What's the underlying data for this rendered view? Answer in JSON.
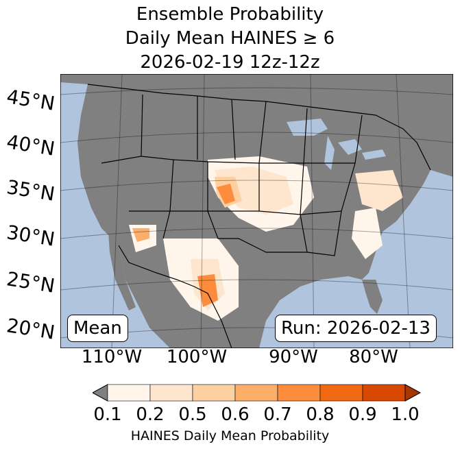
{
  "title": {
    "line1": "Ensemble Probability",
    "line2": "Daily Mean HAINES ≥ 6",
    "line3": "2026-02-19 12z-12z"
  },
  "map": {
    "lat_labels": [
      "45°N",
      "40°N",
      "35°N",
      "30°N",
      "25°N",
      "20°N"
    ],
    "lon_labels": [
      "110°W",
      "100°W",
      "90°W",
      "80°W"
    ],
    "ocean_color": "#b0c4de",
    "land_color": "#808080",
    "mean_label": "Mean",
    "run_label": "Run: 2026-02-13"
  },
  "colorbar": {
    "tick_labels": [
      "0.1",
      "0.2",
      "0.5",
      "0.6",
      "0.7",
      "0.8",
      "0.9",
      "1.0"
    ],
    "colors": [
      "#fff5eb",
      "#fee6ce",
      "#fdd0a2",
      "#fdae6b",
      "#fd8d3c",
      "#f16913",
      "#d94801"
    ],
    "under_color": "#808080",
    "over_color": "#a63603",
    "label": "HAINES Daily Mean Probability"
  }
}
